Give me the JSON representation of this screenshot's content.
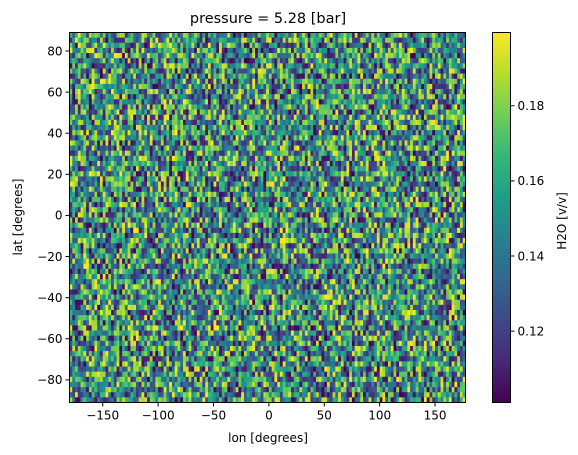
{
  "chart_data": {
    "type": "heatmap",
    "title": "pressure = 5.28 [bar]",
    "xlabel": "lon [degrees]",
    "ylabel": "lat [degrees]",
    "xlim": [
      -180,
      177.5
    ],
    "ylim": [
      -91,
      89
    ],
    "x_tick_values": [
      -150,
      -100,
      -50,
      0,
      50,
      100,
      150
    ],
    "x_tick_labels": [
      "−150",
      "−100",
      "−50",
      "0",
      "50",
      "100",
      "150"
    ],
    "y_tick_values": [
      -80,
      -60,
      -40,
      -20,
      0,
      20,
      40,
      60,
      80
    ],
    "y_tick_labels": [
      "−80",
      "−60",
      "−40",
      "−20",
      "0",
      "20",
      "40",
      "60",
      "80"
    ],
    "grid": false,
    "colormap": "viridis",
    "grid_cells": {
      "lon_count": 144,
      "lat_count": 72,
      "lon_step": 2.5,
      "lat_step": 2.5
    },
    "colorbar": {
      "label": "H2O [v/v]",
      "range": [
        0.101,
        0.1995
      ],
      "tick_values": [
        0.12,
        0.14,
        0.16,
        0.18
      ],
      "tick_labels": [
        "0.12",
        "0.14",
        "0.16",
        "0.18"
      ]
    },
    "value_range": [
      0.101,
      0.1995
    ],
    "value_distribution": "random uniform noise"
  }
}
